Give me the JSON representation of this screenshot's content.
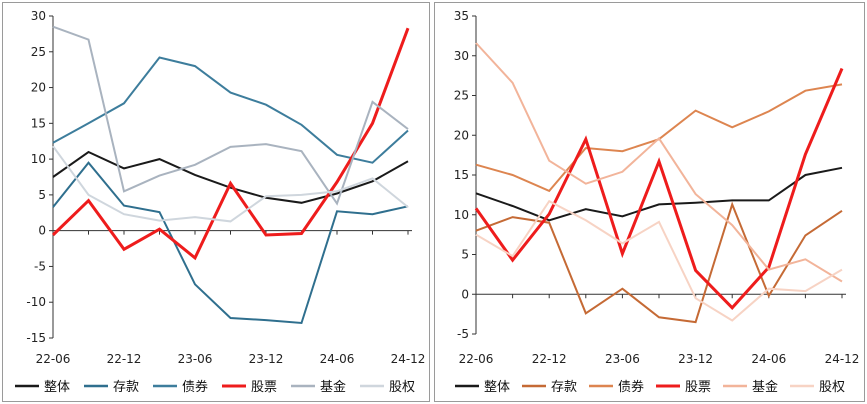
{
  "chart_data": [
    {
      "type": "line",
      "x": [
        "22-06",
        "22-09",
        "22-12",
        "23-03",
        "23-06",
        "23-09",
        "23-12",
        "24-03",
        "24-06",
        "24-09",
        "24-12"
      ],
      "x_tick_labels": [
        "22-06",
        "22-12",
        "23-06",
        "23-12",
        "24-06",
        "24-12"
      ],
      "ylim": [
        -15,
        30
      ],
      "yticks": [
        -15,
        -10,
        -5,
        0,
        5,
        10,
        15,
        20,
        25,
        30
      ],
      "grid": false,
      "legend_position": "bottom",
      "series": [
        {
          "name": "整体",
          "color": "#1a1a1a",
          "values": [
            7.5,
            11.0,
            8.7,
            10.0,
            7.8,
            6.0,
            4.6,
            3.9,
            5.2,
            6.9,
            9.7
          ]
        },
        {
          "name": "存款",
          "color": "#2f6f8e",
          "values": [
            3.3,
            9.5,
            3.5,
            2.6,
            -7.5,
            -12.2,
            -12.5,
            -12.9,
            2.7,
            2.3,
            3.4
          ]
        },
        {
          "name": "债券",
          "color": "#3d7d9c",
          "values": [
            12.3,
            15.0,
            17.8,
            24.2,
            23.0,
            19.3,
            17.6,
            14.8,
            10.6,
            9.5,
            14.0
          ]
        },
        {
          "name": "股票",
          "color": "#ee1c1c",
          "values": [
            -0.6,
            4.2,
            -2.6,
            0.2,
            -3.8,
            6.6,
            -0.6,
            -0.4,
            6.8,
            15.0,
            28.3
          ]
        },
        {
          "name": "基金",
          "color": "#a9b3bf",
          "values": [
            28.5,
            26.7,
            5.5,
            7.7,
            9.2,
            11.7,
            12.1,
            11.1,
            3.8,
            18.0,
            14.2
          ]
        },
        {
          "name": "股权",
          "color": "#cfd6dd",
          "values": [
            11.8,
            5.0,
            2.3,
            1.4,
            1.9,
            1.3,
            4.8,
            5.0,
            5.5,
            7.3,
            3.3
          ]
        }
      ]
    },
    {
      "type": "line",
      "x": [
        "22-06",
        "22-09",
        "22-12",
        "23-03",
        "23-06",
        "23-09",
        "23-12",
        "24-03",
        "24-06",
        "24-09",
        "24-12"
      ],
      "x_tick_labels": [
        "22-06",
        "22-12",
        "23-06",
        "23-12",
        "24-06",
        "24-12"
      ],
      "ylim": [
        -5,
        35
      ],
      "yticks": [
        -5,
        0,
        5,
        10,
        15,
        20,
        25,
        30,
        35
      ],
      "grid": false,
      "legend_position": "bottom",
      "series": [
        {
          "name": "整体",
          "color": "#1a1a1a",
          "values": [
            12.7,
            11.1,
            9.3,
            10.7,
            9.8,
            11.3,
            11.5,
            11.8,
            11.8,
            15.0,
            15.9
          ]
        },
        {
          "name": "存款",
          "color": "#c56a35",
          "values": [
            8.0,
            9.7,
            9.0,
            -2.4,
            0.7,
            -2.9,
            -3.5,
            11.3,
            -0.2,
            7.4,
            10.5
          ]
        },
        {
          "name": "债券",
          "color": "#dd8550",
          "values": [
            16.3,
            15.0,
            13.0,
            18.4,
            18.0,
            19.5,
            23.1,
            21.0,
            23.0,
            25.6,
            26.4
          ]
        },
        {
          "name": "股票",
          "color": "#ee1c1c",
          "values": [
            10.8,
            4.3,
            10.1,
            19.5,
            5.1,
            16.7,
            3.0,
            -1.7,
            3.4,
            17.6,
            28.4
          ]
        },
        {
          "name": "基金",
          "color": "#f2b49a",
          "values": [
            31.6,
            26.6,
            16.8,
            13.9,
            15.4,
            19.6,
            12.6,
            8.7,
            3.1,
            4.4,
            1.6
          ]
        },
        {
          "name": "股权",
          "color": "#f7d3c4",
          "values": [
            7.5,
            4.8,
            11.7,
            9.3,
            6.4,
            9.1,
            -0.5,
            -3.3,
            0.7,
            0.4,
            3.1
          ]
        }
      ]
    }
  ]
}
